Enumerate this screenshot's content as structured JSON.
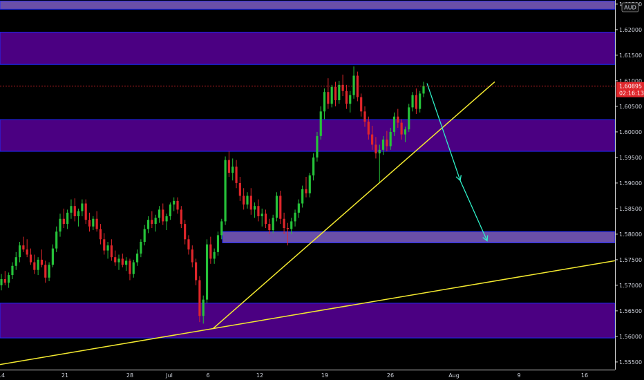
{
  "chart_data": {
    "type": "candlestick",
    "currency_label": "AUD",
    "y_ticks": [
      "1.62500",
      "1.62000",
      "1.61500",
      "1.61000",
      "1.60500",
      "1.60000",
      "1.59500",
      "1.59000",
      "1.58500",
      "1.58000",
      "1.57500",
      "1.57000",
      "1.56500",
      "1.56000",
      "1.55500"
    ],
    "y_tick_values": [
      1.625,
      1.62,
      1.615,
      1.61,
      1.605,
      1.6,
      1.595,
      1.59,
      1.585,
      1.58,
      1.575,
      1.57,
      1.565,
      1.56,
      1.555
    ],
    "ylim": [
      1.5535,
      1.6258
    ],
    "x_ticks": [
      "14",
      "21",
      "28",
      "Jul",
      "6",
      "12",
      "19",
      "26",
      "Aug",
      "9",
      "16"
    ],
    "last_price": "1.60895",
    "countdown": "02:16:13",
    "colors": {
      "up": "#26c33a",
      "down": "#e0262b",
      "zone_fill": "#4b0082",
      "zone_light_fill": "#6a4fa8",
      "trendline": "#f4ea30",
      "projection": "#2ef0c8",
      "price_line": "#e0262b",
      "axis_text": "#cfd3dc"
    },
    "zones": [
      {
        "top": 1.6256,
        "bottom": 1.624,
        "style": "light"
      },
      {
        "top": 1.6195,
        "bottom": 1.6132,
        "style": "dark"
      },
      {
        "top": 1.6024,
        "bottom": 1.5962,
        "style": "dark"
      },
      {
        "top": 1.5805,
        "bottom": 1.5783,
        "style": "light"
      },
      {
        "top": 1.5665,
        "bottom": 1.5597,
        "style": "dark"
      }
    ],
    "trendlines": [
      {
        "from": [
          0,
          1.5545
        ],
        "to": [
          890,
          1.5748
        ]
      },
      {
        "from": [
          308,
          1.5615
        ],
        "to": [
          716,
          1.6098
        ]
      }
    ],
    "projection_path": [
      [
        618,
        1.6095
      ],
      [
        666,
        1.5905
      ],
      [
        705,
        1.5787
      ]
    ],
    "candles": [
      [
        1.57,
        1.5722,
        1.569,
        1.5712
      ],
      [
        1.5712,
        1.5728,
        1.57,
        1.5705
      ],
      [
        1.5705,
        1.5725,
        1.5695,
        1.572
      ],
      [
        1.572,
        1.5745,
        1.5712,
        1.5738
      ],
      [
        1.5738,
        1.5765,
        1.573,
        1.5755
      ],
      [
        1.5755,
        1.5785,
        1.5745,
        1.5778
      ],
      [
        1.5778,
        1.5795,
        1.5765,
        1.577
      ],
      [
        1.577,
        1.579,
        1.5755,
        1.576
      ],
      [
        1.576,
        1.5772,
        1.574,
        1.5745
      ],
      [
        1.5745,
        1.576,
        1.5722,
        1.573
      ],
      [
        1.573,
        1.5755,
        1.572,
        1.575
      ],
      [
        1.575,
        1.577,
        1.5735,
        1.574
      ],
      [
        1.574,
        1.5748,
        1.5705,
        1.5715
      ],
      [
        1.5715,
        1.5745,
        1.5708,
        1.574
      ],
      [
        1.574,
        1.578,
        1.5735,
        1.5772
      ],
      [
        1.5772,
        1.5815,
        1.5765,
        1.5805
      ],
      [
        1.5805,
        1.584,
        1.5795,
        1.583
      ],
      [
        1.583,
        1.585,
        1.5812,
        1.582
      ],
      [
        1.582,
        1.5848,
        1.581,
        1.5842
      ],
      [
        1.5842,
        1.5868,
        1.583,
        1.5855
      ],
      [
        1.5855,
        1.587,
        1.5825,
        1.5835
      ],
      [
        1.5835,
        1.585,
        1.5815,
        1.5845
      ],
      [
        1.5845,
        1.5868,
        1.5835,
        1.586
      ],
      [
        1.586,
        1.5868,
        1.582,
        1.5828
      ],
      [
        1.5828,
        1.5842,
        1.5805,
        1.5815
      ],
      [
        1.5815,
        1.5835,
        1.5808,
        1.583
      ],
      [
        1.583,
        1.5845,
        1.5805,
        1.581
      ],
      [
        1.581,
        1.582,
        1.578,
        1.579
      ],
      [
        1.579,
        1.5802,
        1.576,
        1.5768
      ],
      [
        1.5768,
        1.5785,
        1.5752,
        1.5778
      ],
      [
        1.5778,
        1.579,
        1.5748,
        1.5755
      ],
      [
        1.5755,
        1.5768,
        1.5738,
        1.5745
      ],
      [
        1.5745,
        1.576,
        1.573,
        1.5752
      ],
      [
        1.5752,
        1.5762,
        1.5735,
        1.574
      ],
      [
        1.574,
        1.5755,
        1.5728,
        1.5748
      ],
      [
        1.5748,
        1.5752,
        1.571,
        1.5722
      ],
      [
        1.5722,
        1.575,
        1.5715,
        1.5745
      ],
      [
        1.5745,
        1.577,
        1.5738,
        1.5762
      ],
      [
        1.5762,
        1.579,
        1.5755,
        1.5785
      ],
      [
        1.5785,
        1.5818,
        1.5778,
        1.581
      ],
      [
        1.581,
        1.5835,
        1.5802,
        1.5828
      ],
      [
        1.5828,
        1.5845,
        1.5812,
        1.582
      ],
      [
        1.582,
        1.5838,
        1.5805,
        1.5832
      ],
      [
        1.5832,
        1.5855,
        1.5822,
        1.5848
      ],
      [
        1.5848,
        1.586,
        1.5818,
        1.5825
      ],
      [
        1.5825,
        1.584,
        1.5808,
        1.5835
      ],
      [
        1.5835,
        1.5862,
        1.5828,
        1.5858
      ],
      [
        1.5858,
        1.5872,
        1.5845,
        1.5865
      ],
      [
        1.5865,
        1.5872,
        1.584,
        1.5848
      ],
      [
        1.5848,
        1.5855,
        1.5812,
        1.582
      ],
      [
        1.582,
        1.5828,
        1.578,
        1.579
      ],
      [
        1.579,
        1.5798,
        1.576,
        1.577
      ],
      [
        1.577,
        1.5778,
        1.5735,
        1.5745
      ],
      [
        1.5745,
        1.5752,
        1.57,
        1.571
      ],
      [
        1.571,
        1.5718,
        1.5628,
        1.564
      ],
      [
        1.564,
        1.568,
        1.5625,
        1.5672
      ],
      [
        1.5672,
        1.579,
        1.5665,
        1.578
      ],
      [
        1.578,
        1.5795,
        1.5742,
        1.5752
      ],
      [
        1.5752,
        1.5772,
        1.5742,
        1.5765
      ],
      [
        1.5765,
        1.5805,
        1.5758,
        1.5798
      ],
      [
        1.5798,
        1.583,
        1.579,
        1.5825
      ],
      [
        1.5825,
        1.5952,
        1.5818,
        1.5945
      ],
      [
        1.5945,
        1.5962,
        1.5912,
        1.592
      ],
      [
        1.592,
        1.5948,
        1.5905,
        1.5932
      ],
      [
        1.5932,
        1.5945,
        1.589,
        1.59
      ],
      [
        1.59,
        1.5912,
        1.5865,
        1.5875
      ],
      [
        1.5875,
        1.589,
        1.5848,
        1.5858
      ],
      [
        1.5858,
        1.5882,
        1.585,
        1.5875
      ],
      [
        1.5875,
        1.589,
        1.5838,
        1.5848
      ],
      [
        1.5848,
        1.5862,
        1.5832,
        1.5855
      ],
      [
        1.5855,
        1.5868,
        1.5825,
        1.5835
      ],
      [
        1.5835,
        1.585,
        1.5815,
        1.584
      ],
      [
        1.584,
        1.5848,
        1.5812,
        1.582
      ],
      [
        1.582,
        1.583,
        1.58,
        1.5808
      ],
      [
        1.5808,
        1.5838,
        1.5802,
        1.5832
      ],
      [
        1.5832,
        1.5882,
        1.5825,
        1.5875
      ],
      [
        1.5875,
        1.5885,
        1.582,
        1.583
      ],
      [
        1.583,
        1.5842,
        1.58,
        1.5812
      ],
      [
        1.5812,
        1.5822,
        1.5778,
        1.581
      ],
      [
        1.581,
        1.5832,
        1.58,
        1.5825
      ],
      [
        1.5825,
        1.5848,
        1.5815,
        1.5842
      ],
      [
        1.5842,
        1.5868,
        1.5832,
        1.586
      ],
      [
        1.586,
        1.5895,
        1.5852,
        1.5888
      ],
      [
        1.5888,
        1.5912,
        1.5872,
        1.588
      ],
      [
        1.588,
        1.592,
        1.5872,
        1.5915
      ],
      [
        1.5915,
        1.5958,
        1.5905,
        1.595
      ],
      [
        1.595,
        1.6,
        1.5942,
        1.5992
      ],
      [
        1.5992,
        1.605,
        1.5985,
        1.604
      ],
      [
        1.604,
        1.6085,
        1.6025,
        1.6078
      ],
      [
        1.6078,
        1.6105,
        1.6045,
        1.6055
      ],
      [
        1.6055,
        1.6092,
        1.6048,
        1.6088
      ],
      [
        1.6088,
        1.6098,
        1.605,
        1.6062
      ],
      [
        1.6062,
        1.61,
        1.6055,
        1.6092
      ],
      [
        1.6092,
        1.6112,
        1.607,
        1.608
      ],
      [
        1.608,
        1.6092,
        1.6045,
        1.6055
      ],
      [
        1.6055,
        1.608,
        1.6038,
        1.6072
      ],
      [
        1.6072,
        1.6128,
        1.6065,
        1.611
      ],
      [
        1.611,
        1.6118,
        1.606,
        1.6068
      ],
      [
        1.6068,
        1.6075,
        1.603,
        1.604
      ],
      [
        1.604,
        1.605,
        1.601,
        1.602
      ],
      [
        1.602,
        1.603,
        1.5985,
        1.5995
      ],
      [
        1.5995,
        1.6012,
        1.5965,
        1.5975
      ],
      [
        1.5975,
        1.599,
        1.5948,
        1.5958
      ],
      [
        1.5958,
        1.5975,
        1.59,
        1.5965
      ],
      [
        1.5965,
        1.5992,
        1.5955,
        1.5985
      ],
      [
        1.5985,
        1.6002,
        1.5962,
        1.5972
      ],
      [
        1.5972,
        1.6008,
        1.5965,
        1.6
      ],
      [
        1.6,
        1.6038,
        1.5992,
        1.603
      ],
      [
        1.603,
        1.6045,
        1.6008,
        1.6018
      ],
      [
        1.6018,
        1.6025,
        1.5985,
        1.5995
      ],
      [
        1.5995,
        1.601,
        1.598,
        1.6005
      ],
      [
        1.6005,
        1.6055,
        1.6,
        1.6048
      ],
      [
        1.6048,
        1.6078,
        1.604,
        1.6072
      ],
      [
        1.6072,
        1.6085,
        1.6035,
        1.6045
      ],
      [
        1.6045,
        1.608,
        1.6038,
        1.6075
      ],
      [
        1.6075,
        1.6098,
        1.6068,
        1.609
      ]
    ]
  }
}
